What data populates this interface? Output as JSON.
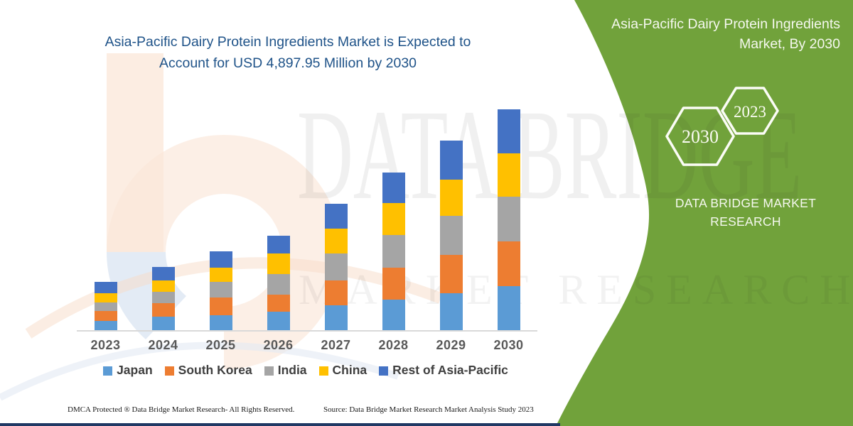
{
  "header": {
    "title_line1": "Asia-Pacific Dairy Protein Ingredients Market is Expected to",
    "title_line2": "Account for USD 4,897.95 Million by 2030"
  },
  "side_panel": {
    "bg_color": "#71A23B",
    "title": "Asia-Pacific Dairy Protein Ingredients Market, By 2030",
    "hexagons": [
      {
        "label": "2030"
      },
      {
        "label": "2023"
      }
    ],
    "brand_line1": "DATA BRIDGE MARKET",
    "brand_line2": "RESEARCH"
  },
  "watermark": {
    "line1": "DATA BRIDGE",
    "line2": "MARKET RESEARCH"
  },
  "chart_data": {
    "type": "bar",
    "stacked": true,
    "unit": "USD Million",
    "categories": [
      "2023",
      "2024",
      "2025",
      "2026",
      "2027",
      "2028",
      "2029",
      "2030"
    ],
    "series": [
      {
        "name": "Japan",
        "color": "#5B9BD5",
        "values": [
          200,
          299,
          326,
          405,
          551,
          682,
          824,
          972
        ]
      },
      {
        "name": "South Korea",
        "color": "#ED7D31",
        "values": [
          220,
          299,
          394,
          383,
          551,
          709,
          839,
          997
        ]
      },
      {
        "name": "India",
        "color": "#A5A5A5",
        "values": [
          200,
          252,
          357,
          457,
          603,
          724,
          871,
          997
        ]
      },
      {
        "name": "China",
        "color": "#FFC000",
        "values": [
          200,
          252,
          315,
          461,
          551,
          709,
          808,
          956
        ]
      },
      {
        "name": "Rest of Asia-Pacific",
        "color": "#4472C4",
        "values": [
          247,
          299,
          351,
          394,
          551,
          666,
          866,
          976
        ]
      }
    ],
    "totals": [
      1067,
      1401,
      1743,
      2100,
      2807,
      3490,
      4208,
      4898
    ],
    "ylim": [
      0,
      4898
    ],
    "grid": false,
    "legend_position": "bottom",
    "axis_color": "#D9D9D9"
  },
  "footer": {
    "left": "DMCA Protected ® Data Bridge Market Research-  All Rights Reserved.",
    "right": "Source: Data Bridge Market Research  Market Analysis Study 2023"
  }
}
